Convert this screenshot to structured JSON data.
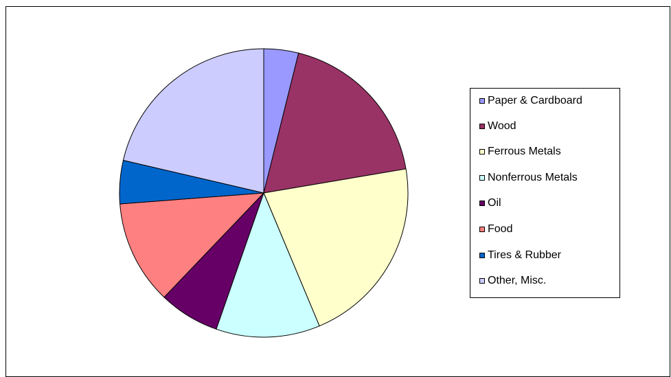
{
  "chart_data": {
    "type": "pie",
    "title": "",
    "legend_position": "right",
    "categories": [
      "Paper & Cardboard",
      "Wood",
      "Ferrous Metals",
      "Nonferrous Metals",
      "Oil",
      "Food",
      "Tires & Rubber",
      "Other, Misc."
    ],
    "values": [
      4,
      19,
      22,
      12,
      7,
      12,
      5,
      22
    ],
    "colors": [
      "#9999FF",
      "#993366",
      "#FFFFCC",
      "#CCFFFF",
      "#660066",
      "#FF8080",
      "#0066CC",
      "#CCCCFF"
    ]
  }
}
